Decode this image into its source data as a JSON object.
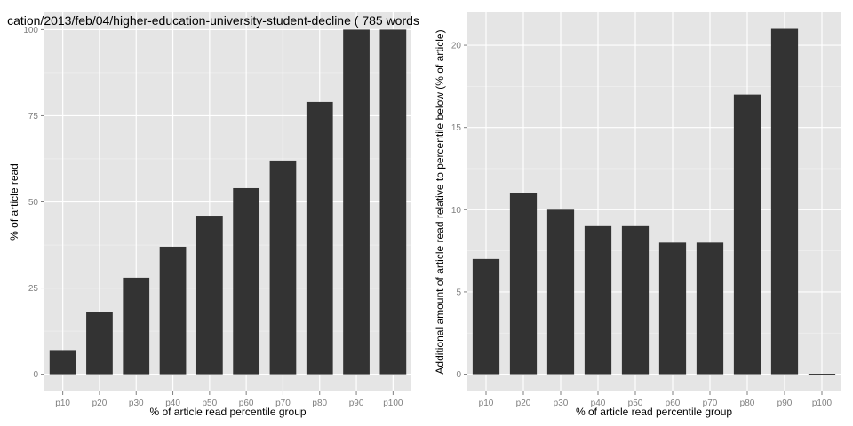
{
  "colors": {
    "panel_background": "#e5e5e5",
    "grid_major": "#ffffff",
    "grid_minor": "#f2f2f2",
    "bar_fill": "#333333",
    "tick_text": "#7f7f7f",
    "tick_mark": "#7f7f7f",
    "text": "#000000"
  },
  "chart_data": [
    {
      "type": "bar",
      "title": "cation/2013/feb/04/higher-education-university-student-decline ( 785 words",
      "xlabel": "% of article read percentile group",
      "ylabel": "% of article read",
      "categories": [
        "p10",
        "p20",
        "p30",
        "p40",
        "p50",
        "p60",
        "p70",
        "p80",
        "p90",
        "p100"
      ],
      "values": [
        7,
        18,
        28,
        37,
        46,
        54,
        62,
        79,
        100,
        100
      ],
      "ylim": [
        -5,
        105
      ],
      "yticks": [
        0,
        25,
        50,
        75,
        100
      ],
      "ytick_labels": [
        "0",
        "25",
        "50",
        "75",
        "100"
      ],
      "grid": true,
      "legend": "none"
    },
    {
      "type": "bar",
      "title": "",
      "xlabel": "% of article read percentile group",
      "ylabel": "Additional amount of article read relative to percentile below (% of article)",
      "categories": [
        "p10",
        "p20",
        "p30",
        "p40",
        "p50",
        "p60",
        "p70",
        "p80",
        "p90",
        "p100"
      ],
      "values": [
        7,
        11,
        10,
        9,
        9,
        8,
        8,
        17,
        21,
        0
      ],
      "ylim": [
        -1.05,
        22
      ],
      "yticks": [
        0,
        5,
        10,
        15,
        20
      ],
      "ytick_labels": [
        "0",
        "5",
        "10",
        "15",
        "20"
      ],
      "grid": true,
      "legend": "none"
    }
  ]
}
